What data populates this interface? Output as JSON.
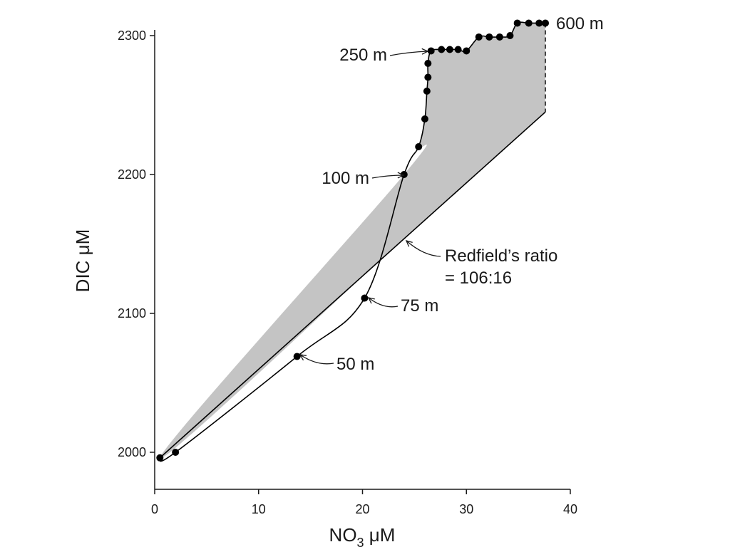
{
  "chart_data": {
    "type": "scatter",
    "xlabel": "NO",
    "xlabel_sub": "3",
    "xlabel_unit": " μM",
    "ylabel": "DIC μM",
    "xlim": [
      0,
      40
    ],
    "ylim": [
      1975,
      2300
    ],
    "x_ticks": [
      0,
      10,
      20,
      30,
      40
    ],
    "y_ticks": [
      2000,
      2100,
      2200,
      2300
    ],
    "colors": {
      "points": "#000000",
      "line": "#000000",
      "shade": "#c4c4c4"
    },
    "series": [
      {
        "type": "line+markers",
        "points": [
          [
            0.5,
            1996
          ],
          [
            2.0,
            2000
          ],
          [
            13.7,
            2069
          ],
          [
            20.2,
            2111
          ],
          [
            24.0,
            2200
          ],
          [
            25.4,
            2220
          ],
          [
            26.0,
            2240
          ],
          [
            26.2,
            2260
          ],
          [
            26.3,
            2270
          ],
          [
            26.3,
            2280
          ],
          [
            26.6,
            2289
          ],
          [
            27.6,
            2290
          ],
          [
            28.4,
            2290
          ],
          [
            29.2,
            2290
          ],
          [
            30.0,
            2289
          ],
          [
            31.2,
            2299
          ],
          [
            32.2,
            2299
          ],
          [
            33.2,
            2299
          ],
          [
            34.2,
            2300
          ],
          [
            34.9,
            2309
          ],
          [
            36.0,
            2309
          ],
          [
            37.0,
            2309
          ],
          [
            37.6,
            2309
          ]
        ]
      },
      {
        "name": "Redfield's ratio",
        "type": "line",
        "points": [
          [
            0.5,
            1996
          ],
          [
            37.6,
            2245
          ]
        ]
      }
    ],
    "shaded_region": "area between the profile curve and the Redfield's ratio line above their crossing",
    "annotations": [
      {
        "text": "600 m",
        "point": [
          37.6,
          2309
        ]
      },
      {
        "text": "250 m",
        "point": [
          26.6,
          2289
        ]
      },
      {
        "text": "100 m",
        "point": [
          24.0,
          2200
        ]
      },
      {
        "text": "75 m",
        "point": [
          20.2,
          2111
        ]
      },
      {
        "text": "50 m",
        "point": [
          13.7,
          2069
        ]
      },
      {
        "text": "Redfield’s ratio",
        "text2": "= 106:16",
        "point": [
          24.0,
          2150
        ]
      }
    ]
  }
}
